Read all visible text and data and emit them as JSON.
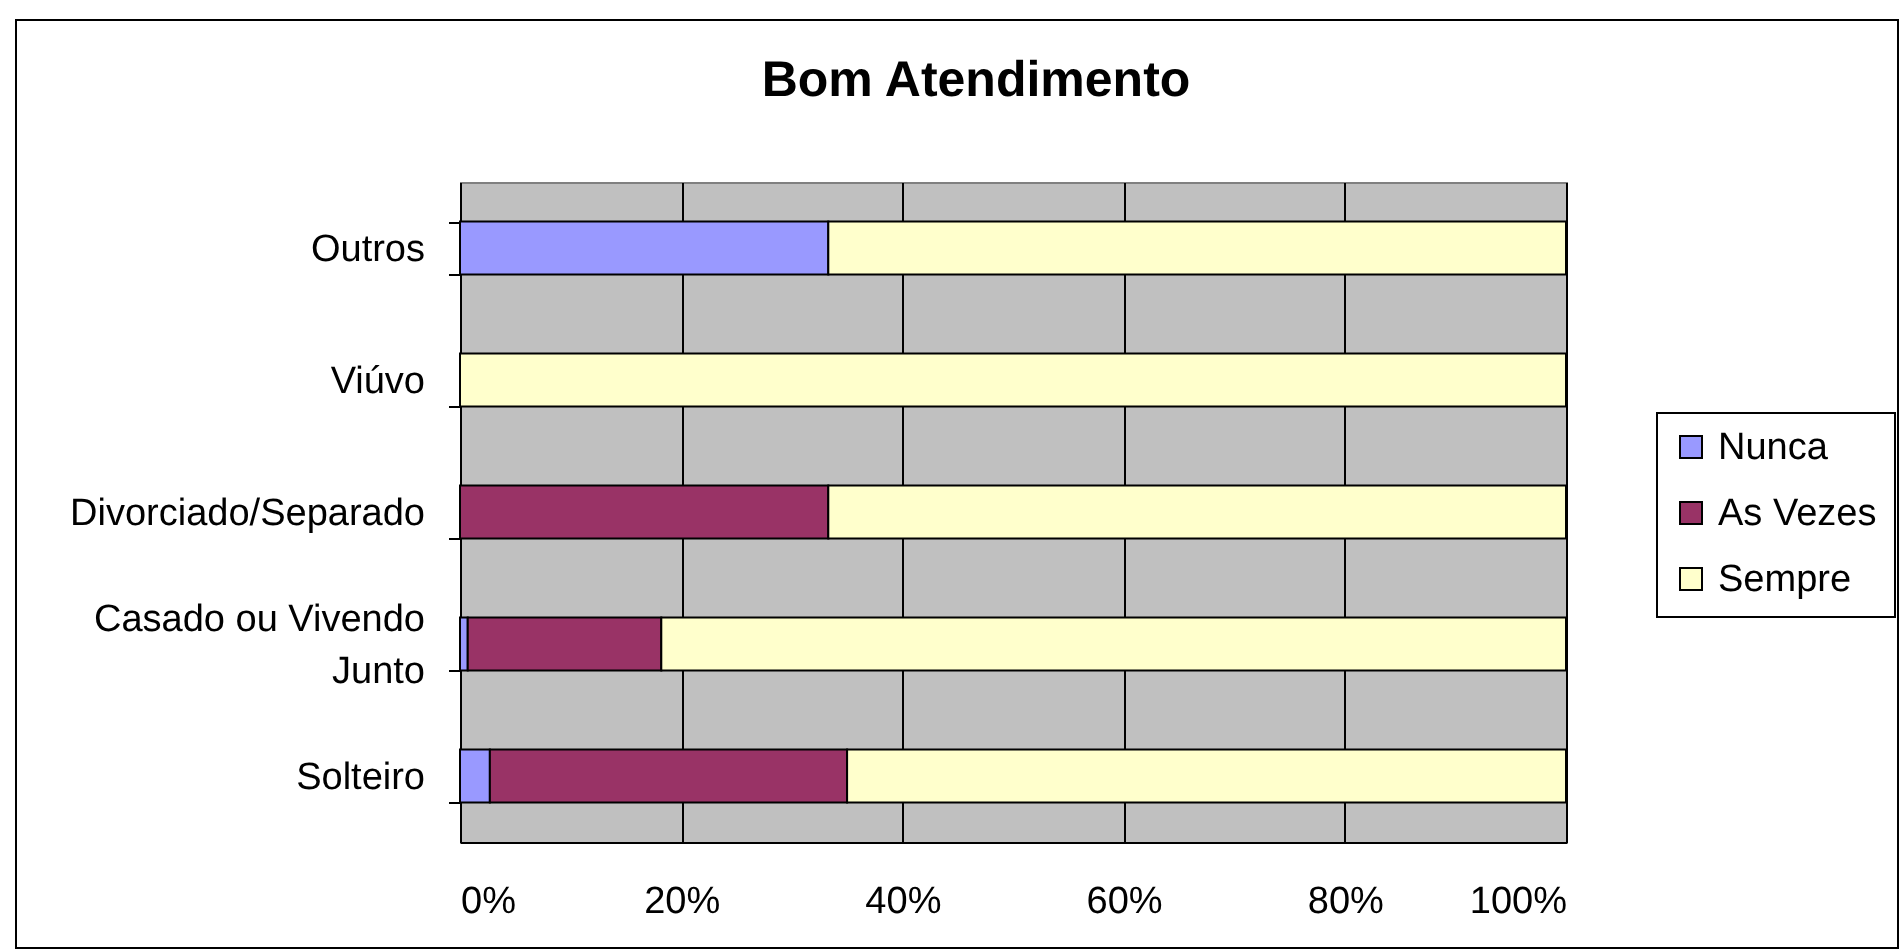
{
  "chart_data": {
    "type": "bar",
    "orientation": "horizontal",
    "stacked": true,
    "title": "Bom Atendimento",
    "categories": [
      "Outros",
      "Viúvo",
      "Divorciado/Separado",
      "Casado ou Vivendo Junto",
      "Solteiro"
    ],
    "series": [
      {
        "name": "Nunca",
        "color": "#9999ff",
        "values": [
          33.3,
          0,
          0,
          0.7,
          2.7
        ]
      },
      {
        "name": "As Vezes",
        "color": "#993366",
        "values": [
          0,
          0,
          33.3,
          17.5,
          32.3
        ]
      },
      {
        "name": "Sempre",
        "color": "#ffffcc",
        "values": [
          66.7,
          100,
          66.7,
          81.8,
          65.0
        ]
      }
    ],
    "xlim": [
      0,
      100
    ],
    "xticks": [
      {
        "value": 0,
        "label": "0%"
      },
      {
        "value": 20,
        "label": "20%"
      },
      {
        "value": 40,
        "label": "40%"
      },
      {
        "value": 60,
        "label": "60%"
      },
      {
        "value": 80,
        "label": "80%"
      },
      {
        "value": 100,
        "label": "100%"
      }
    ],
    "grid": "x",
    "legend": "right"
  }
}
